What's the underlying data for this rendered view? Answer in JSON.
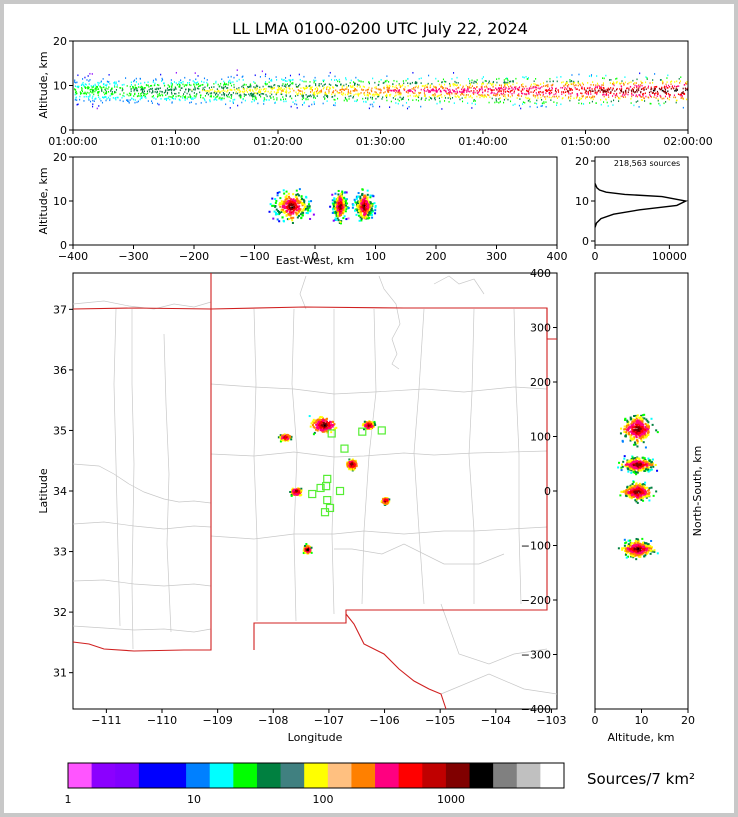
{
  "title": "LL LMA 0100-0200 UTC July 22, 2024",
  "chart_data": [
    {
      "id": "altitude-time",
      "type": "scatter",
      "ylabel": "Altitude, km",
      "ylim": [
        0,
        20
      ],
      "yticks": [
        "0",
        "10",
        "20"
      ],
      "xticks": [
        "01:00:00",
        "01:10:00",
        "01:20:00",
        "01:30:00",
        "01:40:00",
        "01:50:00",
        "02:00:00"
      ],
      "note_values": {
        "dense_altitude_band_km": [
          5,
          13
        ]
      }
    },
    {
      "id": "east-west-altitude",
      "type": "heatmap",
      "xlabel": "East-West, km",
      "ylabel": "Altitude, km",
      "xlim": [
        -400,
        400
      ],
      "ylim": [
        0,
        20
      ],
      "xticks": [
        "−400",
        "−300",
        "−200",
        "−100",
        "0",
        "100",
        "200",
        "300",
        "400"
      ],
      "yticks": [
        "0",
        "10",
        "20"
      ],
      "clusters_ew_km": [
        [
          -80,
          0
        ],
        [
          25,
          55
        ],
        [
          60,
          100
        ]
      ]
    },
    {
      "id": "altitude-histogram",
      "type": "line",
      "annotation": "218,563 sources",
      "xlim": [
        0,
        12500
      ],
      "ylim": [
        0,
        20
      ],
      "xticks": [
        "0",
        "10000"
      ],
      "yticks": [
        "0",
        "10",
        "20"
      ],
      "x": [
        0,
        200,
        800,
        2500,
        6000,
        11000,
        12200,
        9000,
        4000,
        1500,
        600,
        250,
        0
      ],
      "y": [
        4,
        5,
        6,
        7,
        8,
        9,
        10,
        11,
        11.5,
        12,
        12.5,
        13,
        14
      ]
    },
    {
      "id": "plan-view",
      "type": "heatmap",
      "xlabel": "Longitude",
      "ylabel": "Latitude",
      "xlim": [
        -111.6,
        -102.9
      ],
      "ylim": [
        30.4,
        37.6
      ],
      "xticks": [
        "−111",
        "−110",
        "−109",
        "−108",
        "−107",
        "−106",
        "−105",
        "−104",
        "−103"
      ],
      "yticks": [
        "31",
        "32",
        "33",
        "34",
        "35",
        "36",
        "37"
      ],
      "station_count": 12
    },
    {
      "id": "north-south-altitude",
      "type": "heatmap",
      "xlabel": "Altitude, km",
      "ylabel": "North-South, km",
      "xlim": [
        0,
        20
      ],
      "ylim": [
        -400,
        400
      ],
      "xticks": [
        "0",
        "10",
        "20"
      ],
      "yticks": [
        "−400",
        "−300",
        "−200",
        "−100",
        "0",
        "100",
        "200",
        "300",
        "400"
      ]
    },
    {
      "id": "colorbar",
      "type": "colorbar",
      "label": "Sources/7 km²",
      "ticks": [
        "1",
        "10",
        "100",
        "1000"
      ],
      "colors": [
        "#ff55ff",
        "#8b00ff",
        "#8000ff",
        "#0000ff",
        "#0000ff",
        "#0080ff",
        "#00ffff",
        "#00ff00",
        "#008040",
        "#408080",
        "#ffff00",
        "#ffc080",
        "#ff8000",
        "#ff0080",
        "#ff0000",
        "#c00000",
        "#800000",
        "#000000",
        "#808080",
        "#c0c0c0",
        "#ffffff"
      ]
    }
  ]
}
